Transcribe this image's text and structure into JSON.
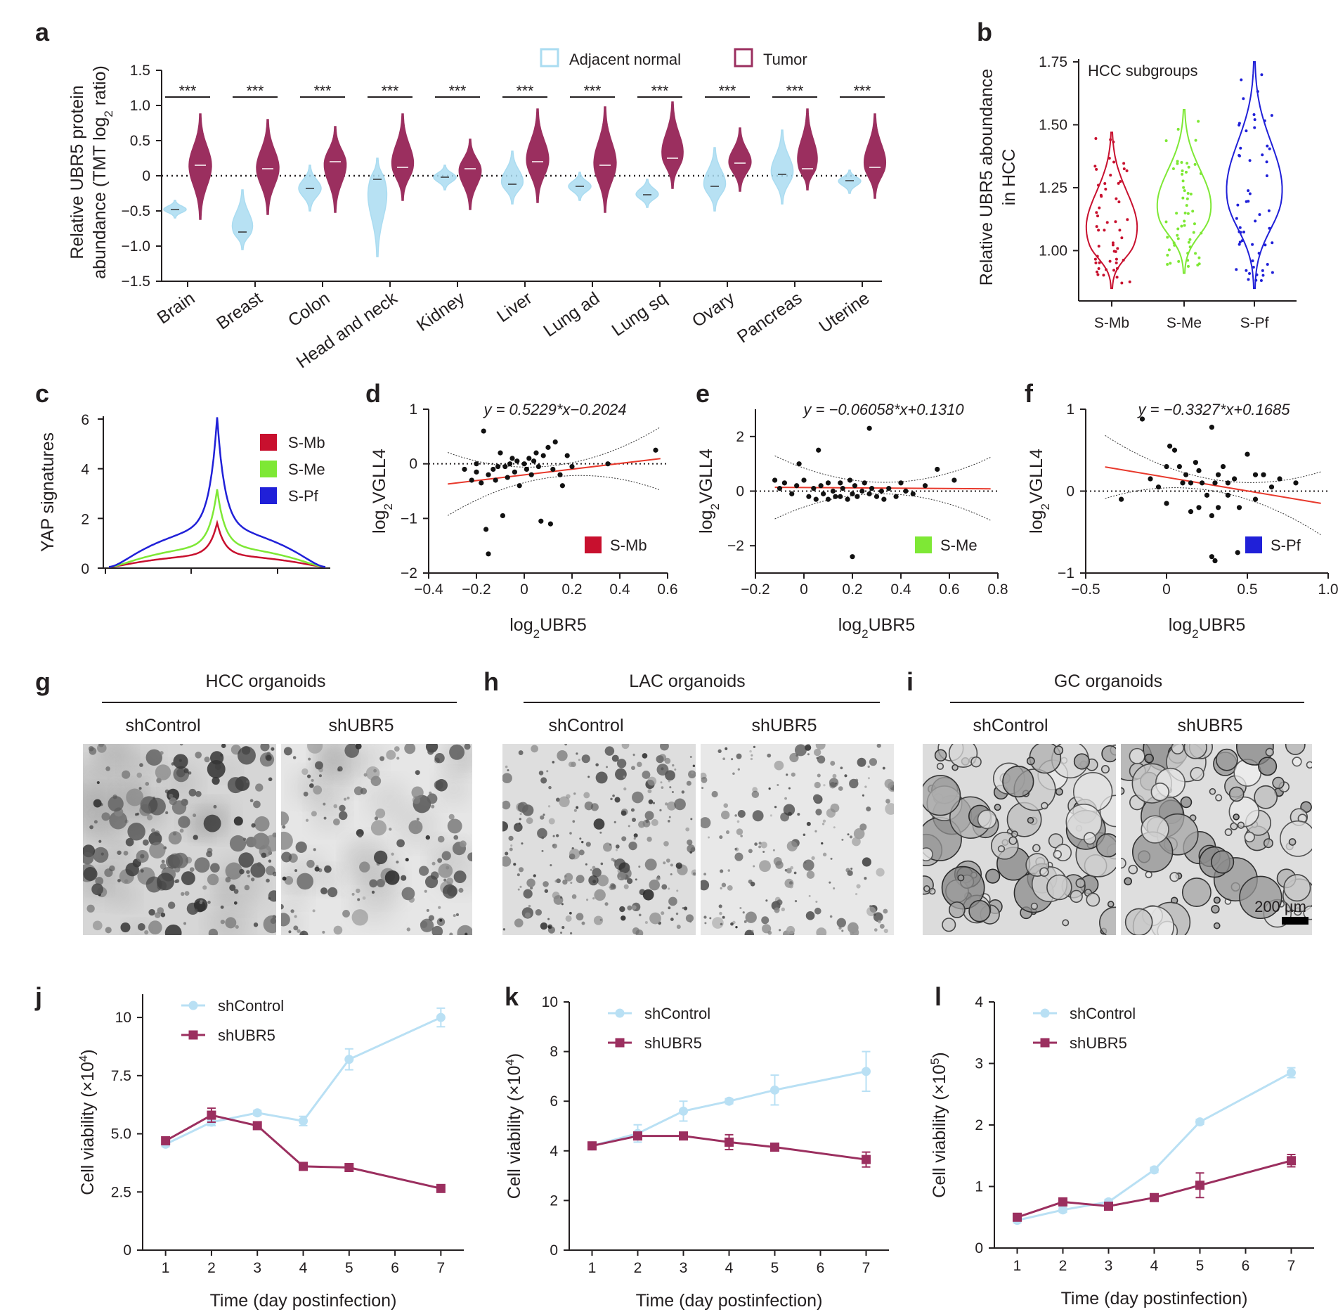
{
  "panel_letters": [
    "a",
    "b",
    "c",
    "d",
    "e",
    "f",
    "g",
    "h",
    "i",
    "j",
    "k",
    "l"
  ],
  "colors": {
    "normal": "#aadcf1",
    "tumor": "#9b2f5f",
    "smb": "#c8102e",
    "sme": "#7ee835",
    "spf": "#2020d8",
    "fit": "#e8392c",
    "dot": "#111111",
    "shcontrol": "#b9e0f4",
    "shubr5": "#9b2f5f"
  },
  "chart_data": [
    {
      "panel": "a",
      "type": "violin",
      "ylabel_line1": "Relative UBR5 protein",
      "ylabel_line2_pre": "abundance (TMT log",
      "ylabel_sub": "2",
      "ylabel_line2_post": " ratio)",
      "ylim": [
        -1.5,
        1.5
      ],
      "yticks": [
        1.5,
        1.0,
        0.5,
        0,
        -0.5,
        -1.0,
        -1.5
      ],
      "ytick_labels": [
        "1.5",
        "1.0",
        "0.5",
        "0",
        "−0.5",
        "−1.0",
        "−1.5"
      ],
      "legend": [
        "Adjacent normal",
        "Tumor"
      ],
      "significance": "***",
      "categories": [
        "Brain",
        "Breast",
        "Colon",
        "Head and neck",
        "Kidney",
        "Liver",
        "Lung ad",
        "Lung sq",
        "Ovary",
        "Pancreas",
        "Uterine"
      ],
      "normal": [
        {
          "median": -0.48,
          "min": -0.6,
          "max": -0.35
        },
        {
          "median": -0.8,
          "min": -1.05,
          "max": -0.2
        },
        {
          "median": -0.18,
          "min": -0.5,
          "max": 0.15
        },
        {
          "median": -0.05,
          "min": -1.15,
          "max": 0.25
        },
        {
          "median": -0.02,
          "min": -0.2,
          "max": 0.15
        },
        {
          "median": -0.12,
          "min": -0.4,
          "max": 0.35
        },
        {
          "median": -0.15,
          "min": -0.35,
          "max": 0.05
        },
        {
          "median": -0.27,
          "min": -0.45,
          "max": -0.05
        },
        {
          "median": -0.15,
          "min": -0.5,
          "max": 0.4
        },
        {
          "median": 0.02,
          "min": -0.4,
          "max": 0.65
        },
        {
          "median": -0.07,
          "min": -0.25,
          "max": 0.08
        }
      ],
      "tumor": [
        {
          "median": 0.15,
          "min": -0.62,
          "max": 0.88
        },
        {
          "median": 0.1,
          "min": -0.55,
          "max": 0.8
        },
        {
          "median": 0.2,
          "min": -0.52,
          "max": 0.7
        },
        {
          "median": 0.12,
          "min": -0.35,
          "max": 0.88
        },
        {
          "median": 0.1,
          "min": -0.48,
          "max": 0.52
        },
        {
          "median": 0.2,
          "min": -0.38,
          "max": 0.95
        },
        {
          "median": 0.15,
          "min": -0.52,
          "max": 0.98
        },
        {
          "median": 0.25,
          "min": -0.18,
          "max": 1.05
        },
        {
          "median": 0.18,
          "min": -0.22,
          "max": 0.68
        },
        {
          "median": 0.1,
          "min": -0.2,
          "max": 0.95
        },
        {
          "median": 0.12,
          "min": -0.32,
          "max": 0.88
        }
      ]
    },
    {
      "panel": "b",
      "type": "violin",
      "title": "HCC subgroups",
      "ylabel_line1": "Relative UBR5 aboundance",
      "ylabel_line2": "in HCC",
      "ylim": [
        0.8,
        1.75
      ],
      "yticks": [
        1.75,
        1.5,
        1.25,
        1.0
      ],
      "ytick_labels": [
        "1.75",
        "1.50",
        "1.25",
        "1.00"
      ],
      "categories": [
        "S-Mb",
        "S-Me",
        "S-Pf"
      ],
      "groups": [
        {
          "median": 1.02,
          "min": 0.85,
          "max": 1.47
        },
        {
          "median": 1.13,
          "min": 0.91,
          "max": 1.56
        },
        {
          "median": 1.2,
          "min": 0.85,
          "max": 1.75
        }
      ]
    },
    {
      "panel": "c",
      "type": "line",
      "ylabel": "YAP signatures",
      "ylim": [
        0,
        6
      ],
      "yticks": [
        0,
        2,
        4,
        6
      ],
      "series": [
        {
          "name": "S-Mb",
          "peak": 1.75
        },
        {
          "name": "S-Me",
          "peak": 3.1
        },
        {
          "name": "S-Pf",
          "peak": 6.0
        }
      ]
    },
    {
      "panel": "d",
      "type": "scatter",
      "equation": "y = 0.5229*x−0.2024",
      "slope": 0.5229,
      "intercept": -0.2024,
      "xlabel_pre": "log",
      "xlabel_sub": "2",
      "xlabel_post": "UBR5",
      "ylabel_pre": "log",
      "ylabel_sub": "2",
      "ylabel_post": "VGLL4",
      "xlim": [
        -0.4,
        0.6
      ],
      "ylim": [
        -2,
        1
      ],
      "xticks": [
        -0.4,
        -0.2,
        0,
        0.2,
        0.4,
        0.6
      ],
      "xtick_labels": [
        "−0.4",
        "−0.2",
        "0",
        "0.2",
        "0.4",
        "0.6"
      ],
      "yticks": [
        1,
        0,
        -1,
        -2
      ],
      "ytick_labels": [
        "1",
        "0",
        "−1",
        "−2"
      ],
      "legend": "S-Mb",
      "points": [
        [
          -0.25,
          -0.1
        ],
        [
          -0.22,
          -0.3
        ],
        [
          -0.2,
          -0.15
        ],
        [
          -0.18,
          -0.35
        ],
        [
          -0.17,
          0.6
        ],
        [
          -0.15,
          -0.2
        ],
        [
          -0.13,
          -0.1
        ],
        [
          -0.12,
          -0.3
        ],
        [
          -0.1,
          0.2
        ],
        [
          -0.08,
          -0.05
        ],
        [
          -0.07,
          -0.25
        ],
        [
          -0.05,
          0.1
        ],
        [
          -0.04,
          -0.15
        ],
        [
          -0.03,
          0.05
        ],
        [
          -0.02,
          -0.4
        ],
        [
          0,
          0.0
        ],
        [
          0.01,
          -0.1
        ],
        [
          0.02,
          0.1
        ],
        [
          0.03,
          -0.2
        ],
        [
          0.05,
          0.2
        ],
        [
          0.06,
          -0.05
        ],
        [
          0.08,
          0.15
        ],
        [
          0.1,
          0.3
        ],
        [
          0.12,
          -0.1
        ],
        [
          0.13,
          0.4
        ],
        [
          0.15,
          -0.2
        ],
        [
          0.16,
          -0.4
        ],
        [
          0.2,
          -0.05
        ],
        [
          -0.16,
          -1.2
        ],
        [
          -0.15,
          -1.65
        ],
        [
          -0.09,
          -0.95
        ],
        [
          0.11,
          -1.1
        ],
        [
          0.07,
          -1.05
        ],
        [
          0.55,
          0.25
        ],
        [
          0.35,
          0.0
        ],
        [
          0.18,
          0.15
        ],
        [
          -0.2,
          0.0
        ],
        [
          -0.06,
          0.0
        ],
        [
          0.04,
          0.05
        ],
        [
          -0.11,
          -0.05
        ]
      ]
    },
    {
      "panel": "e",
      "type": "scatter",
      "equation": "y = −0.06058*x+0.1310",
      "slope": -0.06058,
      "intercept": 0.131,
      "xlabel_pre": "log",
      "xlabel_sub": "2",
      "xlabel_post": "UBR5",
      "ylabel_pre": "log",
      "ylabel_sub": "2",
      "ylabel_post": "VGLL4",
      "xlim": [
        -0.2,
        0.8
      ],
      "ylim": [
        -3,
        3
      ],
      "xticks": [
        -0.2,
        0,
        0.2,
        0.4,
        0.6,
        0.8
      ],
      "xtick_labels": [
        "−0.2",
        "0",
        "0.2",
        "0.4",
        "0.6",
        "0.8"
      ],
      "yticks": [
        2,
        0,
        -2
      ],
      "ytick_labels": [
        "2",
        "0",
        "−2"
      ],
      "legend": "S-Me",
      "points": [
        [
          -0.12,
          0.4
        ],
        [
          -0.1,
          0.1
        ],
        [
          -0.08,
          0.3
        ],
        [
          -0.05,
          -0.1
        ],
        [
          -0.03,
          0.2
        ],
        [
          -0.02,
          1.0
        ],
        [
          0,
          0.4
        ],
        [
          0.02,
          -0.2
        ],
        [
          0.04,
          0.1
        ],
        [
          0.05,
          -0.3
        ],
        [
          0.07,
          0.2
        ],
        [
          0.08,
          -0.1
        ],
        [
          0.1,
          0.3
        ],
        [
          0.12,
          0.0
        ],
        [
          0.13,
          -0.2
        ],
        [
          0.15,
          0.3
        ],
        [
          0.16,
          0.1
        ],
        [
          0.18,
          -0.3
        ],
        [
          0.19,
          0.4
        ],
        [
          0.2,
          -0.1
        ],
        [
          0.21,
          0.2
        ],
        [
          0.22,
          -0.2
        ],
        [
          0.24,
          0.0
        ],
        [
          0.25,
          0.3
        ],
        [
          0.27,
          -0.1
        ],
        [
          0.28,
          0.1
        ],
        [
          0.3,
          -0.2
        ],
        [
          0.32,
          0.0
        ],
        [
          0.35,
          0.1
        ],
        [
          0.38,
          -0.2
        ],
        [
          0.4,
          0.3
        ],
        [
          0.42,
          0.0
        ],
        [
          0.45,
          -0.1
        ],
        [
          0.5,
          0.2
        ],
        [
          0.55,
          0.8
        ],
        [
          0.62,
          0.4
        ],
        [
          0.06,
          1.5
        ],
        [
          0.27,
          2.3
        ],
        [
          0.2,
          -2.4
        ],
        [
          0.15,
          -0.2
        ],
        [
          0.1,
          -0.3
        ],
        [
          0.33,
          -0.3
        ]
      ]
    },
    {
      "panel": "f",
      "type": "scatter",
      "equation": "y = −0.3327*x+0.1685",
      "slope": -0.3327,
      "intercept": 0.1685,
      "xlabel_pre": "log",
      "xlabel_sub": "2",
      "xlabel_post": "UBR5",
      "ylabel_pre": "log",
      "ylabel_sub": "2",
      "ylabel_post": "VGLL4",
      "xlim": [
        -0.5,
        1.0
      ],
      "ylim": [
        -1,
        1
      ],
      "xticks": [
        -0.5,
        0,
        0.5,
        1.0
      ],
      "xtick_labels": [
        "−0.5",
        "0",
        "0.5",
        "1.0"
      ],
      "yticks": [
        1,
        0,
        -1
      ],
      "ytick_labels": [
        "1",
        "0",
        "−1"
      ],
      "legend": "S-Pf",
      "points": [
        [
          -0.28,
          -0.1
        ],
        [
          -0.15,
          0.88
        ],
        [
          -0.1,
          0.15
        ],
        [
          0.0,
          0.3
        ],
        [
          0.02,
          0.55
        ],
        [
          0.05,
          0.5
        ],
        [
          0.08,
          0.3
        ],
        [
          0.1,
          0.1
        ],
        [
          0.12,
          0.2
        ],
        [
          0.15,
          0.1
        ],
        [
          0.18,
          0.35
        ],
        [
          0.2,
          0.25
        ],
        [
          0.22,
          0.1
        ],
        [
          0.25,
          -0.05
        ],
        [
          0.28,
          0.78
        ],
        [
          0.3,
          0.1
        ],
        [
          0.32,
          0.2
        ],
        [
          0.35,
          0.3
        ],
        [
          0.38,
          0.1
        ],
        [
          0.42,
          0.15
        ],
        [
          0.45,
          -0.2
        ],
        [
          0.5,
          0.45
        ],
        [
          0.55,
          0.2
        ],
        [
          0.6,
          0.2
        ],
        [
          0.7,
          0.15
        ],
        [
          0.8,
          0.1
        ],
        [
          0.28,
          -0.8
        ],
        [
          0.3,
          -0.85
        ],
        [
          0.44,
          -0.75
        ],
        [
          0.0,
          -0.15
        ],
        [
          0.15,
          -0.25
        ],
        [
          0.2,
          -0.2
        ],
        [
          0.28,
          -0.3
        ],
        [
          0.32,
          -0.2
        ],
        [
          -0.05,
          0.05
        ],
        [
          0.55,
          -0.1
        ],
        [
          0.38,
          -0.05
        ],
        [
          0.65,
          0.05
        ]
      ]
    },
    {
      "panel": "j",
      "type": "line",
      "ylabel_pre": "Cell viability (×10",
      "ylabel_sup": "4",
      "ylabel_post": ")",
      "xlabel": "Time (day postinfection)",
      "xlim": [
        0.5,
        7.5
      ],
      "ylim": [
        0,
        11
      ],
      "xticks": [
        1,
        2,
        3,
        4,
        5,
        6,
        7
      ],
      "yticks": [
        0,
        2.5,
        5.0,
        7.5,
        10
      ],
      "ytick_labels": [
        "0",
        "2.5",
        "5.0",
        "7.5",
        "10"
      ],
      "series": [
        {
          "name": "shControl",
          "x": [
            1,
            2,
            3,
            4,
            5,
            7
          ],
          "values": [
            4.55,
            5.5,
            5.9,
            5.55,
            8.2,
            10.0
          ],
          "err": [
            0.1,
            0.15,
            0.1,
            0.2,
            0.45,
            0.4
          ]
        },
        {
          "name": "shUBR5",
          "x": [
            1,
            2,
            3,
            4,
            5,
            7
          ],
          "values": [
            4.7,
            5.8,
            5.35,
            3.6,
            3.55,
            2.65
          ],
          "err": [
            0.12,
            0.3,
            0.15,
            0.08,
            0.08,
            0.1
          ]
        }
      ]
    },
    {
      "panel": "k",
      "type": "line",
      "ylabel_pre": "Cell viability (×10",
      "ylabel_sup": "4",
      "ylabel_post": ")",
      "xlabel": "Time (day postinfection)",
      "xlim": [
        0.5,
        7.5
      ],
      "ylim": [
        0,
        10
      ],
      "xticks": [
        1,
        2,
        3,
        4,
        5,
        6,
        7
      ],
      "yticks": [
        0,
        2,
        4,
        6,
        8,
        10
      ],
      "ytick_labels": [
        "0",
        "2",
        "4",
        "6",
        "8",
        "10"
      ],
      "series": [
        {
          "name": "shControl",
          "x": [
            1,
            2,
            3,
            4,
            5,
            7
          ],
          "values": [
            4.2,
            4.7,
            5.6,
            6.0,
            6.45,
            7.2
          ],
          "err": [
            0.15,
            0.35,
            0.4,
            0.1,
            0.6,
            0.8
          ]
        },
        {
          "name": "shUBR5",
          "x": [
            1,
            2,
            3,
            4,
            5,
            7
          ],
          "values": [
            4.2,
            4.6,
            4.6,
            4.35,
            4.15,
            3.65
          ],
          "err": [
            0.15,
            0.15,
            0.12,
            0.3,
            0.12,
            0.3
          ]
        }
      ]
    },
    {
      "panel": "l",
      "type": "line",
      "ylabel_pre": "Cell viability (×10",
      "ylabel_sup": "5",
      "ylabel_post": ")",
      "xlabel": "Time (day postinfection)",
      "xlim": [
        0.5,
        7.5
      ],
      "ylim": [
        0,
        4
      ],
      "xticks": [
        1,
        2,
        3,
        4,
        5,
        6,
        7
      ],
      "yticks": [
        0,
        1,
        2,
        3,
        4
      ],
      "ytick_labels": [
        "0",
        "1",
        "2",
        "3",
        "4"
      ],
      "series": [
        {
          "name": "shControl",
          "x": [
            1,
            2,
            3,
            4,
            5,
            7
          ],
          "values": [
            0.45,
            0.62,
            0.75,
            1.27,
            2.05,
            2.85
          ],
          "err": [
            0.04,
            0.04,
            0.04,
            0.04,
            0.04,
            0.08
          ]
        },
        {
          "name": "shUBR5",
          "x": [
            1,
            2,
            3,
            4,
            5,
            7
          ],
          "values": [
            0.5,
            0.75,
            0.68,
            0.82,
            1.02,
            1.42
          ],
          "err": [
            0.04,
            0.05,
            0.05,
            0.05,
            0.2,
            0.1
          ]
        }
      ]
    }
  ],
  "organoids": [
    {
      "panel": "g",
      "title": "HCC organoids",
      "conditions": [
        "shControl",
        "shUBR5"
      ]
    },
    {
      "panel": "h",
      "title": "LAC organoids",
      "conditions": [
        "shControl",
        "shUBR5"
      ]
    },
    {
      "panel": "i",
      "title": "GC organoids",
      "conditions": [
        "shControl",
        "shUBR5"
      ],
      "scale_bar": "200 µm"
    }
  ]
}
